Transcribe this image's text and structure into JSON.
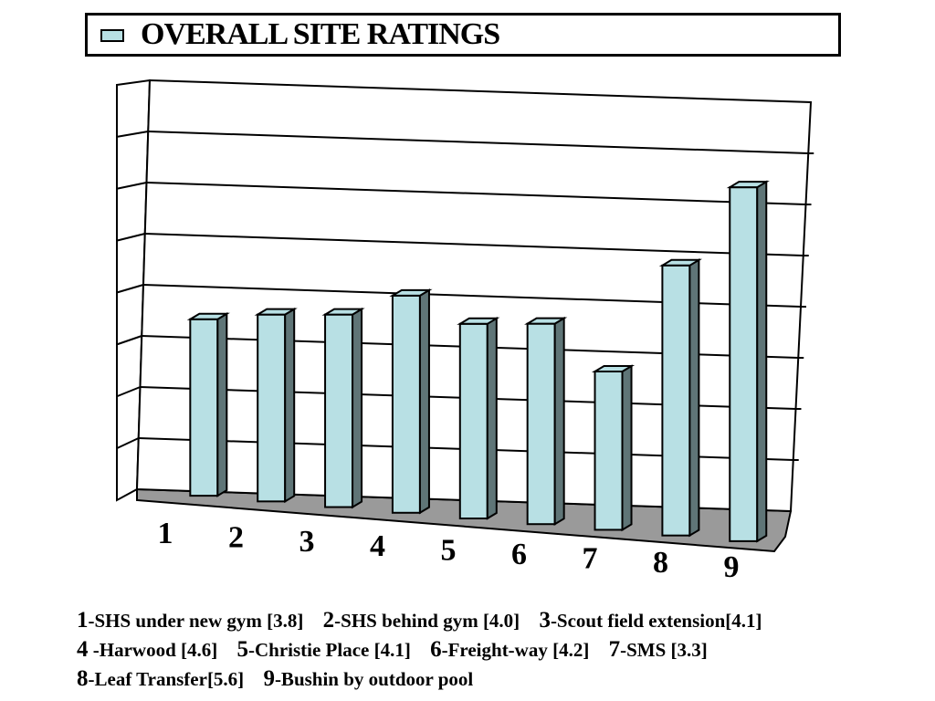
{
  "legend": {
    "label": "OVERALL SITE RATINGS"
  },
  "colors": {
    "bar_face": "#b8e0e4",
    "bar_side": "#5f7577",
    "floor": "#9a9a9a",
    "line": "#000000"
  },
  "chart_data": {
    "type": "bar",
    "categories": [
      "1",
      "2",
      "3",
      "4",
      "5",
      "6",
      "7",
      "8",
      "9"
    ],
    "series": [
      {
        "name": "OVERALL SITE RATINGS",
        "values": [
          3.8,
          4.0,
          4.1,
          4.6,
          4.1,
          4.2,
          3.3,
          5.6,
          7.3
        ]
      }
    ],
    "ylim": [
      0,
      8
    ],
    "grid": true,
    "legend_position": "top"
  },
  "caption": {
    "items": [
      {
        "num": "1",
        "text": "-SHS under new gym [3.8]"
      },
      {
        "num": "2",
        "text": "-SHS behind gym [4.0]"
      },
      {
        "num": "3",
        "text": "-Scout field extension[4.1]"
      },
      {
        "num": "4",
        "text": " -Harwood [4.6]"
      },
      {
        "num": "5",
        "text": "-Christie Place [4.1]"
      },
      {
        "num": "6",
        "text": "-Freight-way [4.2]"
      },
      {
        "num": "7",
        "text": "-SMS [3.3]"
      },
      {
        "num": "8",
        "text": "-Leaf Transfer[5.6]"
      },
      {
        "num": "9",
        "text": "-Bushin by outdoor pool"
      }
    ]
  }
}
